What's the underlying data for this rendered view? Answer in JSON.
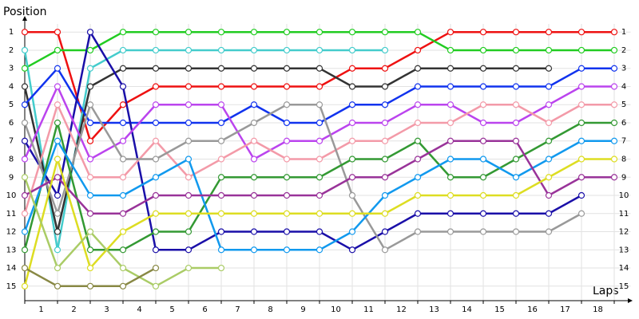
{
  "chart_data": {
    "type": "line",
    "y_label": "Position",
    "x_label": "Laps",
    "x": [
      0,
      1,
      2,
      3,
      4,
      5,
      6,
      7,
      8,
      9,
      10,
      11,
      12,
      13,
      14,
      15,
      16,
      17,
      18
    ],
    "xlim": [
      0,
      18.5
    ],
    "xticks": [
      {
        "value": 0.5,
        "label": "1"
      },
      {
        "value": 1.5,
        "label": "2"
      },
      {
        "value": 2.5,
        "label": "3"
      },
      {
        "value": 3.5,
        "label": "4"
      },
      {
        "value": 4.5,
        "label": "5"
      },
      {
        "value": 5.5,
        "label": "6"
      },
      {
        "value": 6.5,
        "label": "7"
      },
      {
        "value": 7.5,
        "label": "8"
      },
      {
        "value": 8.5,
        "label": "9"
      },
      {
        "value": 9.5,
        "label": "10"
      },
      {
        "value": 10.5,
        "label": "11"
      },
      {
        "value": 11.5,
        "label": "12"
      },
      {
        "value": 12.5,
        "label": "13"
      },
      {
        "value": 13.5,
        "label": "14"
      },
      {
        "value": 14.5,
        "label": "15"
      },
      {
        "value": 15.5,
        "label": "16"
      },
      {
        "value": 16.5,
        "label": "17"
      },
      {
        "value": 17.5,
        "label": "18"
      }
    ],
    "ylim": [
      15.8,
      0.2
    ],
    "yticks": [
      1,
      2,
      3,
      4,
      5,
      6,
      7,
      8,
      9,
      10,
      11,
      12,
      13,
      14,
      15
    ],
    "grid": true,
    "series": [
      {
        "color": "#ee1111",
        "values": [
          1,
          1,
          7,
          5,
          4,
          4,
          4,
          4,
          4,
          4,
          3,
          3,
          2,
          1,
          1,
          1,
          1,
          1,
          1
        ]
      },
      {
        "color": "#22cc22",
        "values": [
          3,
          2,
          2,
          1,
          1,
          1,
          1,
          1,
          1,
          1,
          1,
          1,
          1,
          2,
          2,
          2,
          2,
          2,
          2
        ]
      },
      {
        "color": "#44cccc",
        "values": [
          2,
          13,
          3,
          2,
          2,
          2,
          2,
          2,
          2,
          2,
          2,
          2,
          null,
          null,
          null,
          null,
          null,
          null,
          null
        ]
      },
      {
        "color": "#333333",
        "values": [
          4,
          12,
          4,
          3,
          3,
          3,
          3,
          3,
          3,
          3,
          4,
          4,
          3,
          3,
          3,
          3,
          3,
          null,
          null
        ]
      },
      {
        "color": "#1133ee",
        "values": [
          5,
          3,
          6,
          6,
          6,
          6,
          6,
          5,
          6,
          6,
          5,
          5,
          4,
          4,
          4,
          4,
          4,
          3,
          3
        ]
      },
      {
        "color": "#1a0fa8",
        "values": [
          7,
          10,
          1,
          4,
          13,
          13,
          12,
          12,
          12,
          12,
          13,
          12,
          11,
          11,
          11,
          11,
          11,
          10,
          null
        ]
      },
      {
        "color": "#bb44ee",
        "values": [
          8,
          4,
          8,
          7,
          5,
          5,
          5,
          8,
          7,
          7,
          6,
          6,
          5,
          5,
          6,
          6,
          5,
          4,
          4
        ]
      },
      {
        "color": "#f39aa8",
        "values": [
          11,
          5,
          9,
          9,
          7,
          9,
          8,
          7,
          8,
          8,
          7,
          7,
          6,
          6,
          5,
          5,
          6,
          5,
          5
        ]
      },
      {
        "color": "#999999",
        "values": [
          6,
          11,
          5,
          8,
          8,
          7,
          7,
          6,
          5,
          5,
          10,
          13,
          12,
          12,
          12,
          12,
          12,
          11,
          null
        ]
      },
      {
        "color": "#339933",
        "values": [
          13,
          6,
          13,
          13,
          12,
          12,
          9,
          9,
          9,
          9,
          8,
          8,
          7,
          9,
          9,
          8,
          7,
          6,
          6
        ]
      },
      {
        "color": "#1199ee",
        "values": [
          12,
          7,
          10,
          10,
          9,
          8,
          13,
          13,
          13,
          13,
          12,
          10,
          9,
          8,
          8,
          9,
          8,
          7,
          7
        ]
      },
      {
        "color": "#993399",
        "values": [
          10,
          9,
          11,
          11,
          10,
          10,
          10,
          10,
          10,
          10,
          9,
          9,
          8,
          7,
          7,
          7,
          10,
          9,
          9
        ]
      },
      {
        "color": "#dddd22",
        "values": [
          15,
          8,
          14,
          12,
          11,
          11,
          11,
          11,
          11,
          11,
          11,
          11,
          10,
          10,
          10,
          10,
          9,
          8,
          8
        ]
      },
      {
        "color": "#aacc66",
        "values": [
          9,
          14,
          12,
          14,
          15,
          14,
          14,
          null,
          null,
          null,
          null,
          null,
          null,
          null,
          null,
          null,
          null,
          null,
          null
        ]
      },
      {
        "color": "#888844",
        "values": [
          14,
          15,
          15,
          15,
          14,
          null,
          null,
          null,
          null,
          null,
          null,
          null,
          null,
          null,
          null,
          null,
          null,
          null,
          null
        ]
      }
    ]
  }
}
